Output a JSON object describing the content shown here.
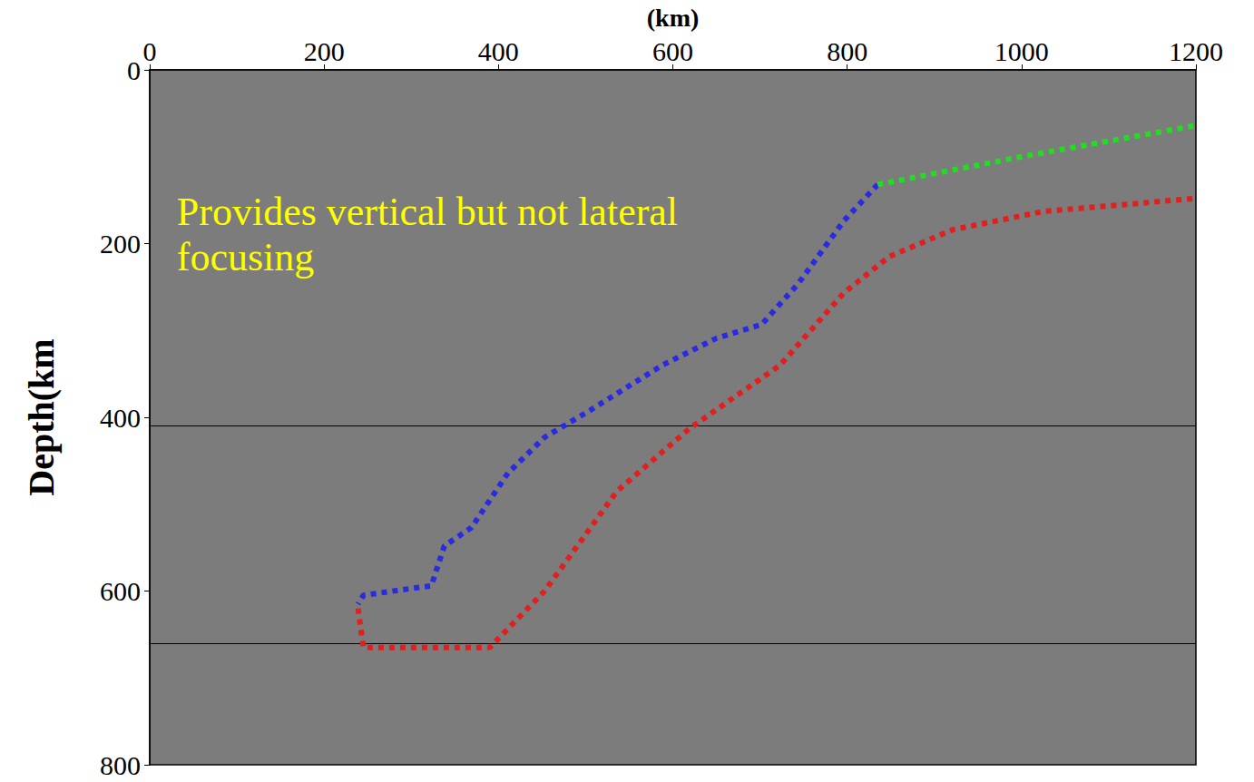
{
  "chart_data": {
    "type": "line",
    "x_label": "(km)",
    "y_label": "Depth(km",
    "xlim": [
      0,
      1200
    ],
    "xticks": [
      0,
      200,
      400,
      600,
      800,
      1000,
      1200
    ],
    "ylim": [
      0,
      800
    ],
    "yticks": [
      0,
      200,
      400,
      600,
      800
    ],
    "grid": false,
    "series": [
      {
        "color": "#2a2ae0",
        "line_style": "dotted",
        "x": [
          835,
          796,
          744,
          702,
          650,
          588,
          505,
          453,
          411,
          369,
          338,
          323,
          286,
          245,
          239
        ],
        "values": [
          132,
          174,
          246,
          293,
          309,
          340,
          392,
          423,
          464,
          527,
          548,
          594,
          599,
          605,
          615
        ]
      },
      {
        "color": "#e02020",
        "line_style": "dotted",
        "x": [
          239,
          245,
          390,
          453,
          536,
          619,
          723,
          796,
          848,
          921,
          1025,
          1200
        ],
        "values": [
          620,
          665,
          665,
          600,
          485,
          413,
          340,
          257,
          215,
          184,
          163,
          148
        ]
      },
      {
        "color": "#22dd22",
        "line_style": "dotted",
        "x": [
          835,
          1000,
          1200
        ],
        "values": [
          132,
          100,
          64
        ]
      }
    ],
    "reference_lines": {
      "values": [
        410,
        660
      ],
      "color": "#000000"
    },
    "annotations": [
      {
        "text": "Provides vertical but not lateral\nfocusing",
        "x": 31,
        "y": 137,
        "color": "#ffff00"
      }
    ]
  }
}
